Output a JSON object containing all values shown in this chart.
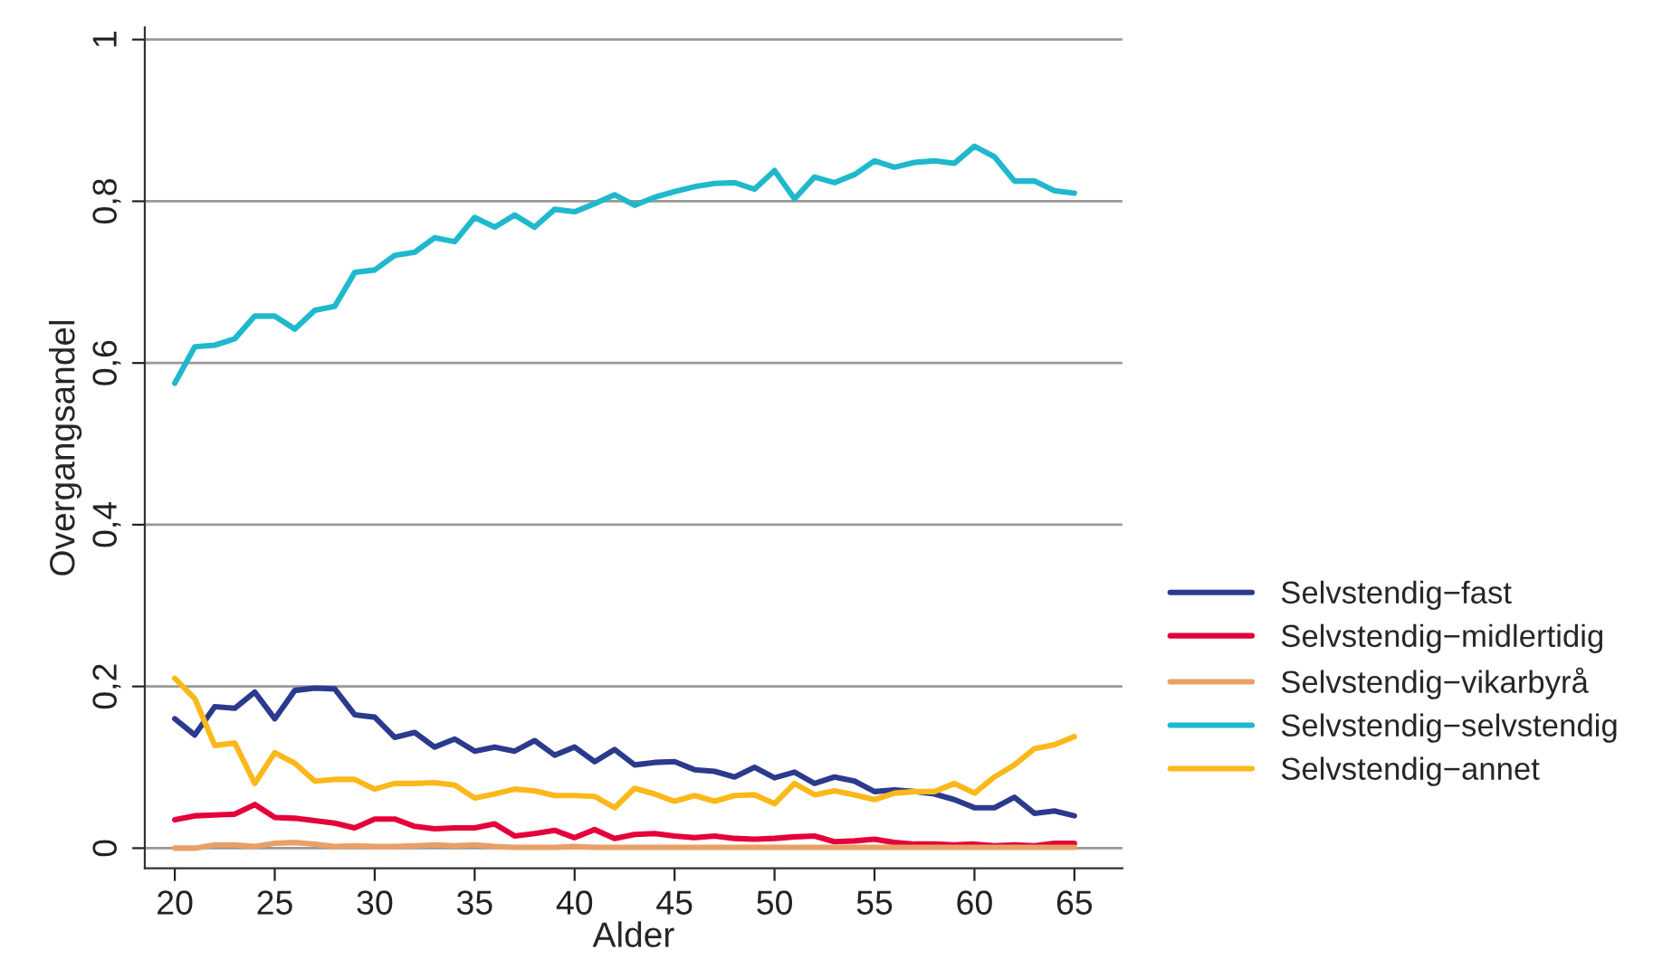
{
  "chart_data": {
    "type": "line",
    "xlabel": "Alder",
    "ylabel": "Overgangsandel",
    "x": [
      20,
      21,
      22,
      23,
      24,
      25,
      26,
      27,
      28,
      29,
      30,
      31,
      32,
      33,
      34,
      35,
      36,
      37,
      38,
      39,
      40,
      41,
      42,
      43,
      44,
      45,
      46,
      47,
      48,
      49,
      50,
      51,
      52,
      53,
      54,
      55,
      56,
      57,
      58,
      59,
      60,
      61,
      62,
      63,
      64,
      65
    ],
    "series": [
      {
        "name": "Selvstendig−fast",
        "color": "#2b3a8c",
        "values": [
          0.16,
          0.14,
          0.175,
          0.173,
          0.193,
          0.16,
          0.195,
          0.198,
          0.197,
          0.165,
          0.162,
          0.137,
          0.143,
          0.125,
          0.135,
          0.12,
          0.125,
          0.12,
          0.133,
          0.115,
          0.125,
          0.107,
          0.122,
          0.103,
          0.106,
          0.107,
          0.097,
          0.095,
          0.088,
          0.1,
          0.087,
          0.094,
          0.08,
          0.088,
          0.083,
          0.07,
          0.072,
          0.07,
          0.067,
          0.06,
          0.05,
          0.05,
          0.063,
          0.043,
          0.046,
          0.04
        ]
      },
      {
        "name": "Selvstendig−midlertidig",
        "color": "#e4003a",
        "values": [
          0.035,
          0.04,
          0.041,
          0.042,
          0.054,
          0.038,
          0.037,
          0.034,
          0.031,
          0.025,
          0.036,
          0.036,
          0.027,
          0.024,
          0.025,
          0.025,
          0.03,
          0.015,
          0.018,
          0.022,
          0.013,
          0.023,
          0.012,
          0.017,
          0.018,
          0.015,
          0.013,
          0.015,
          0.012,
          0.011,
          0.012,
          0.014,
          0.015,
          0.008,
          0.009,
          0.011,
          0.007,
          0.005,
          0.005,
          0.004,
          0.005,
          0.003,
          0.004,
          0.003,
          0.006,
          0.006
        ]
      },
      {
        "name": "Selvstendig−vikarbyrå",
        "color": "#e8a068",
        "values": [
          0.0,
          0.0,
          0.004,
          0.004,
          0.002,
          0.006,
          0.007,
          0.005,
          0.002,
          0.003,
          0.002,
          0.002,
          0.003,
          0.004,
          0.003,
          0.004,
          0.002,
          0.001,
          0.001,
          0.001,
          0.002,
          0.001,
          0.001,
          0.001,
          0.001,
          0.001,
          0.001,
          0.001,
          0.001,
          0.001,
          0.001,
          0.001,
          0.001,
          0.001,
          0.001,
          0.001,
          0.001,
          0.001,
          0.001,
          0.001,
          0.001,
          0.001,
          0.001,
          0.001,
          0.001,
          0.001
        ]
      },
      {
        "name": "Selvstendig−selvstendig",
        "color": "#1fb8cc",
        "values": [
          0.575,
          0.62,
          0.622,
          0.63,
          0.658,
          0.658,
          0.642,
          0.665,
          0.67,
          0.712,
          0.715,
          0.733,
          0.737,
          0.755,
          0.75,
          0.78,
          0.768,
          0.783,
          0.768,
          0.79,
          0.787,
          0.797,
          0.808,
          0.795,
          0.805,
          0.812,
          0.818,
          0.822,
          0.823,
          0.815,
          0.838,
          0.803,
          0.83,
          0.823,
          0.833,
          0.85,
          0.842,
          0.848,
          0.85,
          0.847,
          0.868,
          0.855,
          0.825,
          0.825,
          0.813,
          0.81
        ]
      },
      {
        "name": "Selvstendig−annet",
        "color": "#fbb81a",
        "values": [
          0.21,
          0.185,
          0.127,
          0.13,
          0.08,
          0.118,
          0.105,
          0.083,
          0.085,
          0.085,
          0.073,
          0.08,
          0.08,
          0.081,
          0.078,
          0.062,
          0.067,
          0.073,
          0.071,
          0.065,
          0.065,
          0.064,
          0.05,
          0.074,
          0.067,
          0.058,
          0.065,
          0.058,
          0.065,
          0.066,
          0.055,
          0.08,
          0.066,
          0.071,
          0.066,
          0.06,
          0.068,
          0.07,
          0.07,
          0.08,
          0.068,
          0.088,
          0.103,
          0.123,
          0.128,
          0.138
        ]
      }
    ],
    "xlim": [
      18.5,
      67.4
    ],
    "ylim": [
      -0.025,
      1.015
    ],
    "xticks": [
      20,
      25,
      30,
      35,
      40,
      45,
      50,
      55,
      60,
      65
    ],
    "yticks": [
      0,
      {
        "value": 0.2,
        "label": "0,2"
      },
      {
        "value": 0.4,
        "label": "0,4"
      },
      {
        "value": 0.6,
        "label": "0,6"
      },
      {
        "value": 0.8,
        "label": "0,8"
      },
      1
    ],
    "grid": "y",
    "legend": "right",
    "marker": "none",
    "line_style": "solid"
  }
}
